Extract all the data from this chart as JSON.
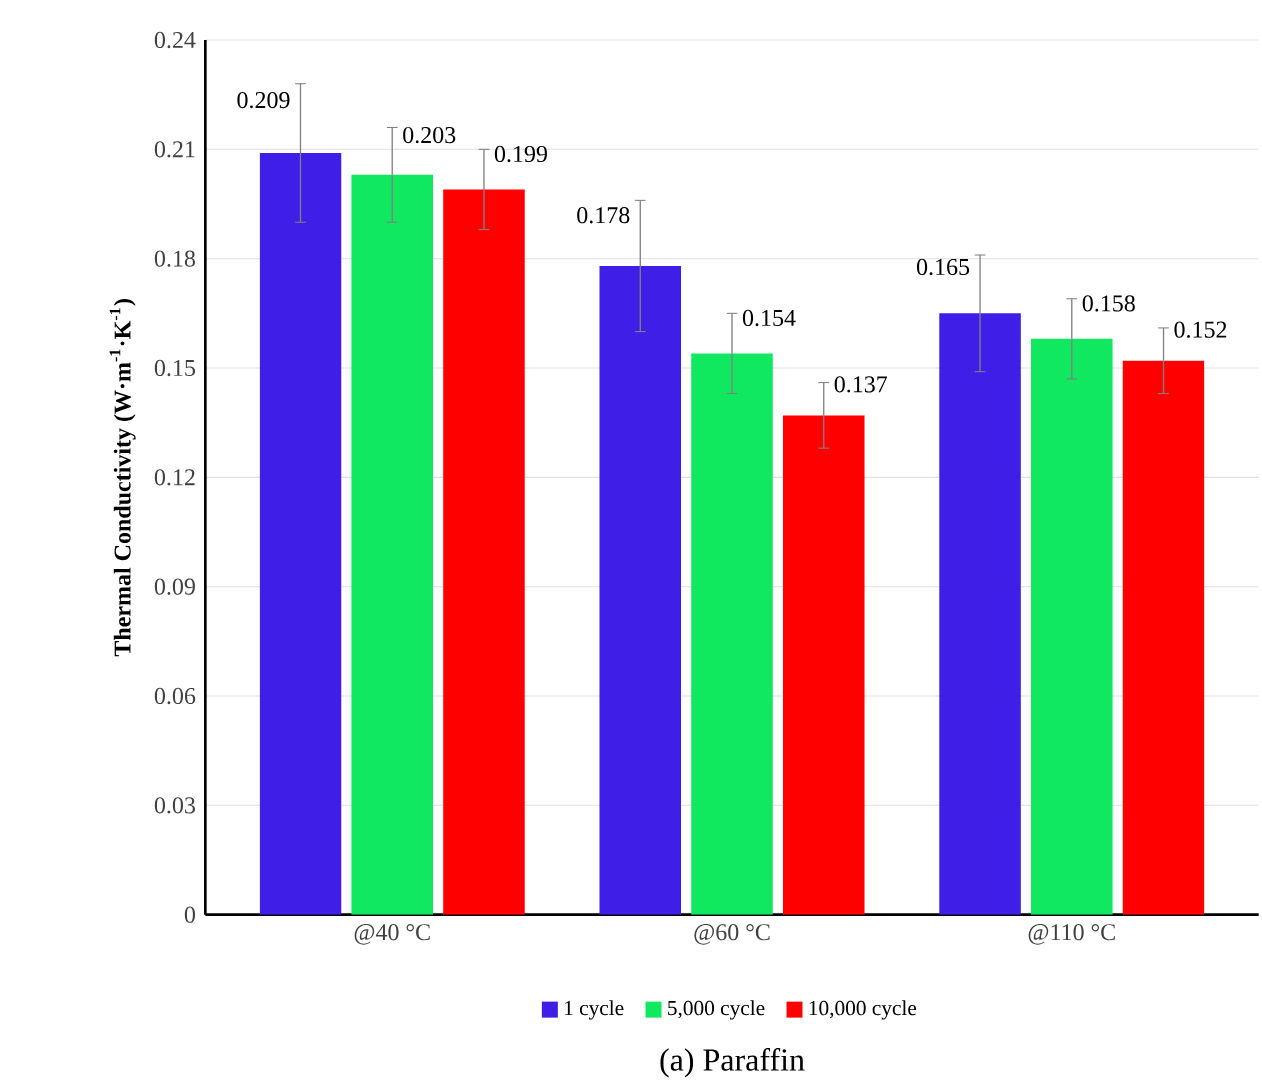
{
  "chart_data": {
    "type": "bar",
    "title": "(a) Paraffin",
    "ylabel": "Thermal Conductivity (W·m$^{-1}$·K$^{-1}$)",
    "categories": [
      "@40 °C",
      "@60 °C",
      "@110 °C"
    ],
    "series": [
      {
        "name": "1 cycle",
        "color": "#3f1ee8",
        "values": [
          0.209,
          0.178,
          0.165
        ],
        "errors": [
          0.019,
          0.018,
          0.016
        ]
      },
      {
        "name": "5,000 cycle",
        "color": "#10e860",
        "values": [
          0.203,
          0.154,
          0.158
        ],
        "errors": [
          0.013,
          0.011,
          0.011
        ]
      },
      {
        "name": "10,000 cycle",
        "color": "#ff0000",
        "values": [
          0.199,
          0.137,
          0.152
        ],
        "errors": [
          0.011,
          0.009,
          0.009
        ]
      }
    ],
    "ylim": [
      0,
      0.24
    ],
    "yticks": [
      0,
      0.03,
      0.06,
      0.09,
      0.12,
      0.15,
      0.18,
      0.21,
      0.24
    ],
    "grid": "y",
    "legend": "bottom",
    "data_labels": true
  }
}
